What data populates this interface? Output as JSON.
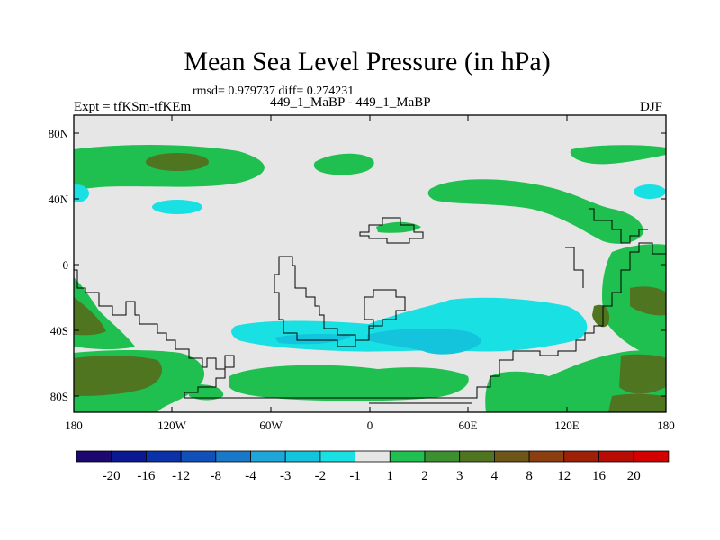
{
  "title": "Mean Sea Level Pressure (in hPa)",
  "stats": "rmsd= 0.979737 diff= 0.274231",
  "runs": "449_1_MaBP - 449_1_MaBP",
  "experiment": "Expt = tfKSm-tfKEm",
  "season": "DJF",
  "y_ticks": [
    "80N",
    "40N",
    "0",
    "40S",
    "80S"
  ],
  "x_ticks": [
    "180",
    "120W",
    "60W",
    "0",
    "60E",
    "120E",
    "180"
  ],
  "colorbar": {
    "labels": [
      "-20",
      "-16",
      "-12",
      "-8",
      "-4",
      "-3",
      "-2",
      "-1",
      "1",
      "2",
      "3",
      "4",
      "8",
      "12",
      "16",
      "20"
    ],
    "colors": [
      "#1d0870",
      "#0a1893",
      "#0b32a8",
      "#1051b9",
      "#1a78c9",
      "#1ea6d8",
      "#14c3dc",
      "#19e0e2",
      "#e6e6e6",
      "#1fbf50",
      "#3d8f2f",
      "#4f7520",
      "#6e5518",
      "#8b3e10",
      "#9e2008",
      "#b80c04",
      "#d40000"
    ]
  },
  "palette": {
    "land_outline": "#000000",
    "background": "#e6e6e6"
  }
}
